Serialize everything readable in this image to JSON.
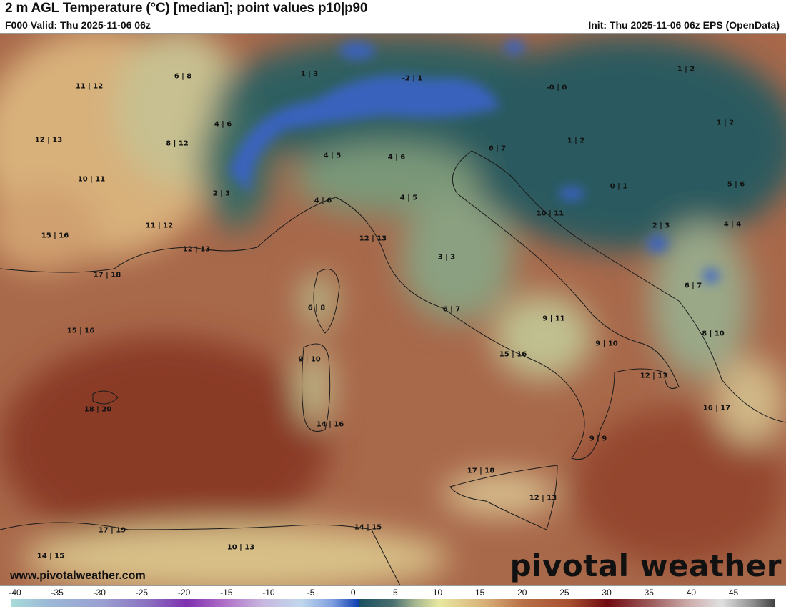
{
  "header": {
    "title": "2 m AGL Temperature (°C) [median]; point values p10|p90",
    "valid": "F000 Valid: Thu 2025-11-06 06z",
    "init": "Init: Thu 2025-11-06 06z EPS (OpenData)"
  },
  "map": {
    "point_values": [
      "11 | 12",
      "6 | 8",
      "1 | 3",
      "-2 | 1",
      "-0 | 0",
      "1 | 2",
      "4 | 6",
      "12 | 13",
      "8 | 12",
      "1 | 2",
      "1 | 2",
      "6 | 7",
      "4 | 5",
      "4 | 6",
      "10 | 11",
      "2 | 3",
      "4 | 6",
      "4 | 5",
      "0 | 1",
      "5 | 6",
      "10 | 11",
      "15 | 16",
      "11 | 12",
      "12 | 13",
      "2 | 3",
      "4 | 4",
      "12 | 13",
      "3 | 3",
      "17 | 18",
      "6 | 7",
      "6 | 8",
      "6 | 7",
      "9 | 11",
      "15 | 16",
      "8 | 10",
      "9 | 10",
      "9 | 10",
      "15 | 16",
      "12 | 13",
      "18 | 20",
      "16 | 17",
      "14 | 16",
      "9 | 9",
      "17 | 18",
      "12 | 13",
      "17 | 19",
      "14 | 15",
      "10 | 13",
      "14 | 15"
    ]
  },
  "footer": {
    "website": "www.pivotalweather.com",
    "logo": "pivotal weather"
  },
  "colorbar": {
    "ticks": [
      "-40",
      "-35",
      "-30",
      "-25",
      "-20",
      "-15",
      "-10",
      "-5",
      "0",
      "5",
      "10",
      "15",
      "20",
      "25",
      "30",
      "35",
      "40",
      "45"
    ],
    "colors": {
      "cold": "#8030b0",
      "freezing": "#1040b0",
      "mild": "#e8e8a0",
      "warm": "#a85030",
      "hot": "#700a10"
    }
  }
}
